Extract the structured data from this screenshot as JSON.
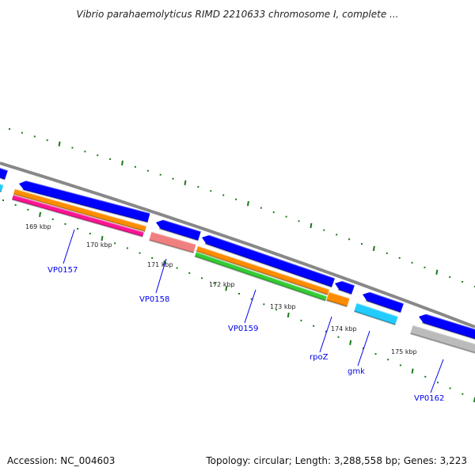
{
  "title": "Vibrio parahaemolyticus RIMD 2210633 chromosome I, complete ...",
  "footer": {
    "accession": "Accession: NC_004603",
    "summary": "Topology: circular; Length: 3,288,558 bp; Genes: 3,223"
  },
  "scale_labels": [
    "169 kbp",
    "170 kbp",
    "171 kbp",
    "172 kbp",
    "173 kbp",
    "174 kbp",
    "175 kbp"
  ],
  "gene_labels": [
    "VP0157",
    "VP0158",
    "VP0159",
    "rpoZ",
    "gmk",
    "VP0162"
  ],
  "colors": {
    "cds": "#0000ff",
    "backbone": "#888888",
    "ticks": "#1a7a1a",
    "label": "#0000ee",
    "orange": "#ff8c00",
    "pink": "#ff1493",
    "salmon": "#f08080",
    "green": "#33cc33",
    "cyan": "#22ccff",
    "gray": "#bbbbbb"
  }
}
